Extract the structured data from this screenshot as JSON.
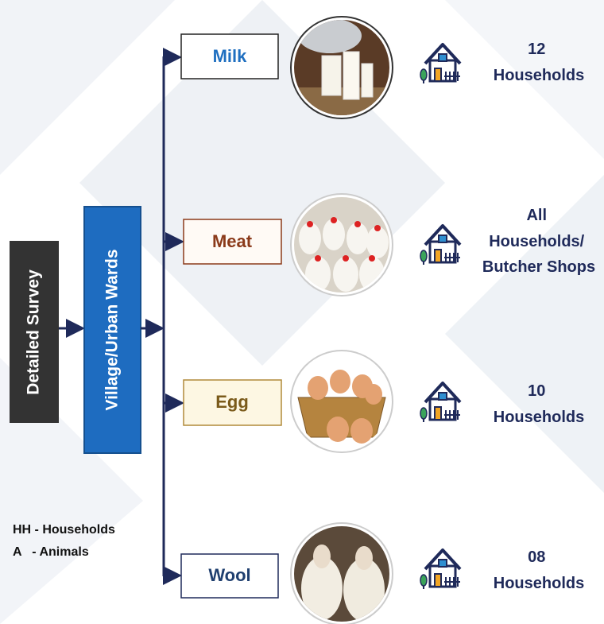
{
  "root": {
    "label": "Detailed Survey"
  },
  "level2": {
    "label": "Village/Urban Wards"
  },
  "items": [
    {
      "label": "Milk",
      "count_lines": [
        "12",
        "Households"
      ]
    },
    {
      "label": "Meat",
      "count_lines": [
        "All",
        "Households/",
        "Butcher Shops"
      ]
    },
    {
      "label": "Egg",
      "count_lines": [
        "10",
        "Households"
      ]
    },
    {
      "label": "Wool",
      "count_lines": [
        "08",
        "Households"
      ]
    }
  ],
  "legend": [
    "HH - Households",
    "A   - Animals"
  ]
}
